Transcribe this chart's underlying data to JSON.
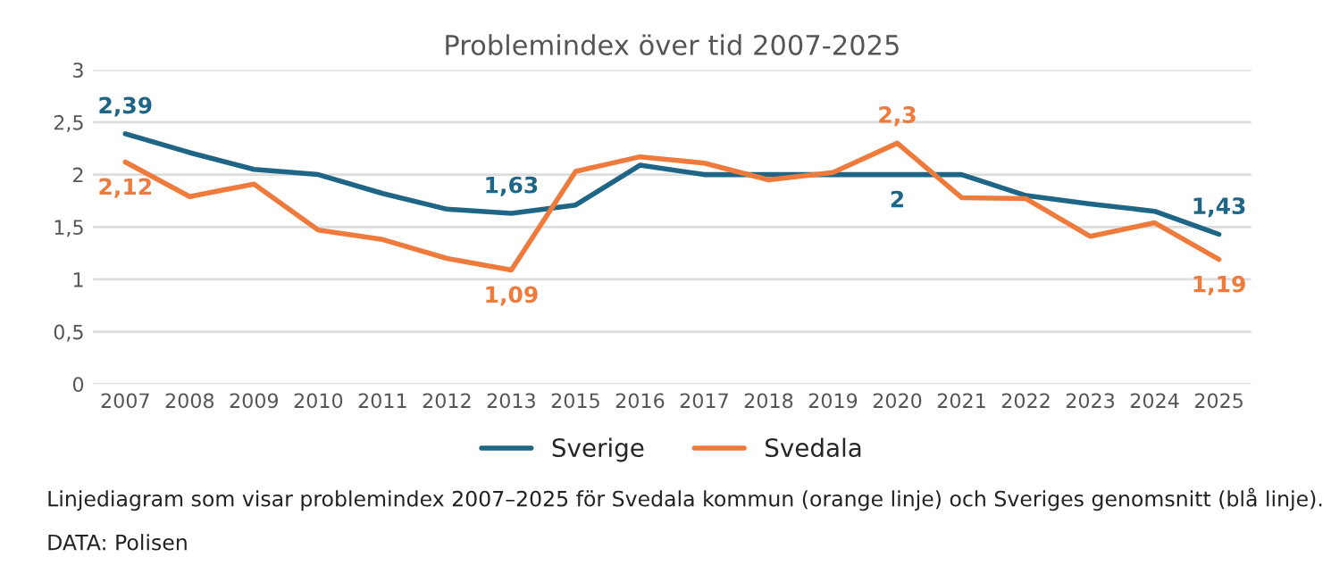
{
  "chart_data": {
    "type": "line",
    "title": "Problemindex över tid 2007-2025",
    "categories": [
      "2007",
      "2008",
      "2009",
      "2010",
      "2011",
      "2012",
      "2013",
      "2015",
      "2016",
      "2017",
      "2018",
      "2019",
      "2020",
      "2021",
      "2022",
      "2023",
      "2024",
      "2025"
    ],
    "series": [
      {
        "name": "Sverige",
        "color": "#1f6585",
        "values": [
          2.39,
          2.21,
          2.05,
          2.0,
          1.82,
          1.67,
          1.63,
          1.71,
          2.09,
          2.0,
          2.0,
          2.0,
          2.0,
          2.0,
          1.8,
          1.72,
          1.65,
          1.43
        ],
        "value_labels": [
          "2,39",
          null,
          null,
          null,
          null,
          null,
          "1,63",
          null,
          null,
          null,
          null,
          null,
          "2",
          null,
          null,
          null,
          null,
          "1,43"
        ]
      },
      {
        "name": "Svedala",
        "color": "#ee7a3c",
        "values": [
          2.12,
          1.79,
          1.91,
          1.47,
          1.38,
          1.2,
          1.09,
          2.03,
          2.17,
          2.11,
          1.95,
          2.02,
          2.3,
          1.78,
          1.77,
          1.41,
          1.54,
          1.19
        ],
        "value_labels": [
          "2,12",
          null,
          null,
          null,
          null,
          null,
          "1,09",
          null,
          null,
          null,
          null,
          null,
          "2,3",
          null,
          null,
          null,
          null,
          "1,19"
        ]
      }
    ],
    "ylim": [
      0,
      3
    ],
    "yticks": [
      0,
      {
        "value": 0.5,
        "label": "0,5"
      },
      1,
      {
        "value": 1.5,
        "label": "1,5"
      },
      2,
      {
        "value": 2.5,
        "label": "2,5"
      },
      3
    ],
    "grid": "y",
    "legend": "bottom",
    "marker": "none",
    "line_style": "solid",
    "annotations": [
      "Linjediagram som visar problemindex 2007–2025 för Svedala kommun (orange linje) och Sveriges genomsnitt (blå linje).",
      "DATA: Polisen"
    ]
  }
}
